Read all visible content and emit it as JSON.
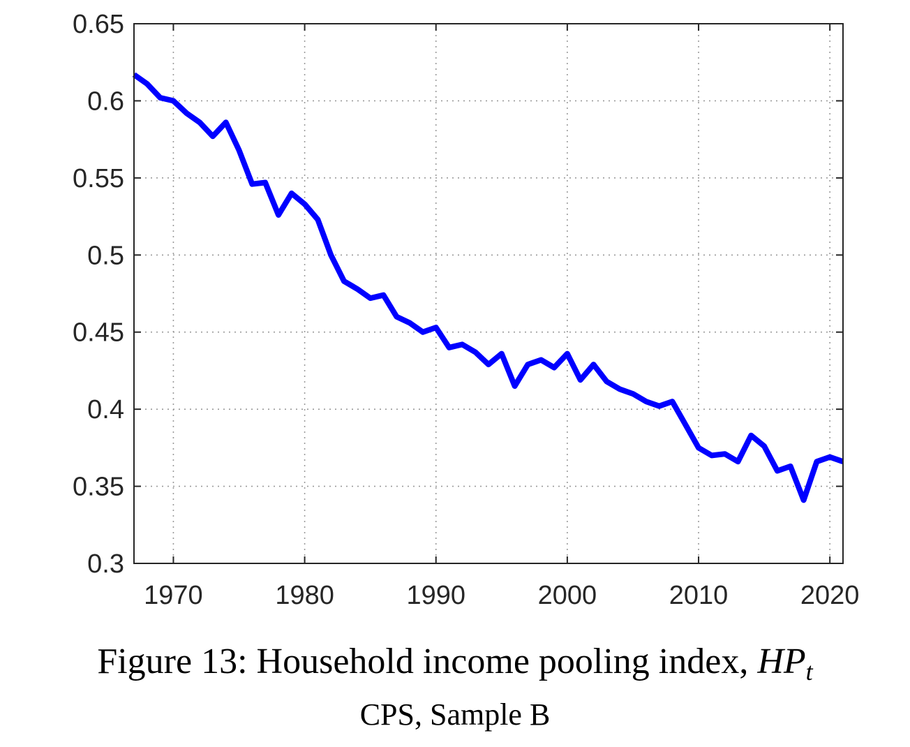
{
  "caption": {
    "title_prefix": "Figure 13: Household income pooling index, ",
    "title_math_main": "HP",
    "title_math_sub": "t",
    "subtitle": "CPS, Sample B"
  },
  "chart_data": {
    "type": "line",
    "title": "",
    "xlabel": "",
    "ylabel": "",
    "xlim": [
      1967,
      2021
    ],
    "ylim": [
      0.3,
      0.65
    ],
    "x_ticks": [
      1970,
      1980,
      1990,
      2000,
      2010,
      2020
    ],
    "y_ticks": [
      0.3,
      0.35,
      0.4,
      0.45,
      0.5,
      0.55,
      0.6,
      0.65
    ],
    "x_tick_labels": [
      "1970",
      "1980",
      "1990",
      "2000",
      "2010",
      "2020"
    ],
    "y_tick_labels": [
      "0.3",
      "0.35",
      "0.4",
      "0.45",
      "0.5",
      "0.55",
      "0.6",
      "0.65"
    ],
    "grid": true,
    "series": [
      {
        "color": "#0000ff",
        "x": [
          1967,
          1968,
          1969,
          1970,
          1971,
          1972,
          1973,
          1974,
          1975,
          1976,
          1977,
          1978,
          1979,
          1980,
          1981,
          1982,
          1983,
          1984,
          1985,
          1986,
          1987,
          1988,
          1989,
          1990,
          1991,
          1992,
          1993,
          1994,
          1995,
          1996,
          1997,
          1998,
          1999,
          2000,
          2001,
          2002,
          2003,
          2004,
          2005,
          2006,
          2007,
          2008,
          2009,
          2010,
          2011,
          2012,
          2013,
          2014,
          2015,
          2016,
          2017,
          2018,
          2019,
          2020,
          2021
        ],
        "values": [
          0.617,
          0.611,
          0.602,
          0.6,
          0.592,
          0.586,
          0.577,
          0.586,
          0.568,
          0.546,
          0.547,
          0.526,
          0.54,
          0.533,
          0.523,
          0.5,
          0.483,
          0.478,
          0.472,
          0.474,
          0.46,
          0.456,
          0.45,
          0.453,
          0.44,
          0.442,
          0.437,
          0.429,
          0.436,
          0.415,
          0.429,
          0.432,
          0.427,
          0.436,
          0.419,
          0.429,
          0.418,
          0.413,
          0.41,
          0.405,
          0.402,
          0.405,
          0.39,
          0.375,
          0.37,
          0.371,
          0.366,
          0.383,
          0.376,
          0.36,
          0.363,
          0.341,
          0.366,
          0.369,
          0.366
        ]
      }
    ]
  }
}
